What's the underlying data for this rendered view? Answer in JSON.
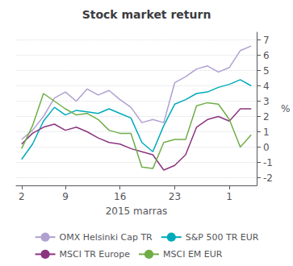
{
  "chart_data": {
    "type": "line",
    "title": "Stock market return",
    "xlabel": "2015 marras",
    "ylabel": "%",
    "categories": [
      "2",
      null,
      null,
      null,
      "9",
      null,
      null,
      null,
      null,
      "16",
      null,
      null,
      null,
      null,
      "23",
      null,
      null,
      null,
      null,
      "1",
      null,
      null
    ],
    "series": [
      {
        "name": "OMX Helsinki Cap TR",
        "color": "#B0A0D0",
        "values": [
          0.5,
          1.1,
          2.0,
          3.2,
          3.6,
          3.0,
          3.8,
          3.4,
          3.7,
          3.1,
          2.6,
          1.6,
          1.8,
          1.6,
          4.2,
          4.6,
          5.1,
          5.3,
          4.9,
          5.2,
          6.3,
          6.6
        ]
      },
      {
        "name": "S&P 500 TR EUR",
        "color": "#00AABB",
        "values": [
          -0.8,
          0.2,
          1.7,
          2.6,
          2.1,
          2.4,
          2.3,
          2.2,
          2.5,
          2.2,
          1.9,
          0.3,
          -0.3,
          1.4,
          2.8,
          3.1,
          3.5,
          3.6,
          3.9,
          4.1,
          4.4,
          4.0
        ]
      },
      {
        "name": "MSCI TR Europe",
        "color": "#8B3580",
        "values": [
          0.2,
          0.9,
          1.3,
          1.5,
          1.1,
          1.3,
          1.0,
          0.6,
          0.3,
          0.2,
          -0.1,
          -0.3,
          -0.5,
          -1.5,
          -1.2,
          -0.5,
          1.3,
          1.8,
          2.0,
          1.7,
          2.5,
          2.5
        ]
      },
      {
        "name": "MSCI EM EUR",
        "color": "#70AD47",
        "values": [
          -0.1,
          1.4,
          3.5,
          3.0,
          2.5,
          2.1,
          2.2,
          1.8,
          1.1,
          0.9,
          0.9,
          -1.3,
          -1.4,
          0.3,
          0.5,
          0.5,
          2.7,
          2.9,
          2.8,
          1.8,
          0.0,
          0.8
        ]
      }
    ],
    "ylim": [
      -2.5,
      7.5
    ],
    "yticks": [
      -2,
      -1,
      0,
      1,
      2,
      3,
      4,
      5,
      6,
      7
    ],
    "grid": true,
    "legend": "bottom"
  }
}
